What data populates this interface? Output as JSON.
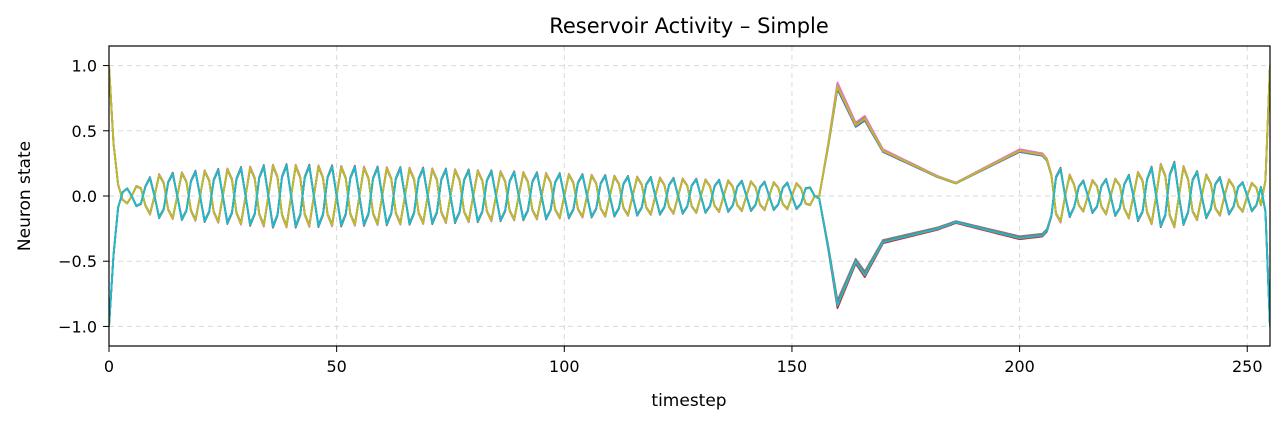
{
  "chart_data": {
    "type": "line",
    "title": "Reservoir Activity – Simple",
    "xlabel": "timestep",
    "ylabel": "Neuron state",
    "xlim": [
      0,
      255
    ],
    "ylim": [
      -1.15,
      1.15
    ],
    "xticks": [
      0,
      50,
      100,
      150,
      200,
      250
    ],
    "yticks": [
      1.0,
      0.5,
      0.0,
      -0.5,
      -1.0
    ],
    "xtick_labels": [
      "0",
      "50",
      "100",
      "150",
      "200",
      "250"
    ],
    "ytick_labels": [
      "1.0",
      "0.5",
      "0.0",
      "−0.5",
      "−1.0"
    ],
    "grid": true,
    "legend": "none",
    "colors": [
      "#1f77b4",
      "#ff7f0e",
      "#2ca02c",
      "#d62728",
      "#9467bd",
      "#8c564b",
      "#e377c2",
      "#7f7f7f",
      "#bcbd22",
      "#17becf"
    ],
    "key_points": {
      "t": [
        0,
        1,
        2,
        3,
        6,
        10,
        37,
        70,
        153,
        156,
        158,
        160,
        164,
        166,
        170,
        176,
        182,
        186,
        200,
        205,
        213,
        222,
        233,
        240,
        250,
        254,
        255
      ],
      "upper_envelope": [
        1.0,
        0.4,
        0.15,
        0.05,
        0.08,
        0.17,
        0.25,
        0.22,
        0.1,
        0.0,
        0.4,
        0.85,
        0.55,
        0.6,
        0.35,
        0.25,
        0.15,
        0.1,
        0.35,
        0.32,
        0.12,
        0.14,
        0.28,
        0.18,
        0.1,
        0.12,
        1.0
      ],
      "lower_envelope": [
        -1.0,
        -0.45,
        -0.15,
        -0.05,
        -0.08,
        -0.17,
        -0.25,
        -0.22,
        -0.1,
        -0.02,
        -0.4,
        -0.83,
        -0.5,
        -0.6,
        -0.35,
        -0.3,
        -0.25,
        -0.2,
        -0.32,
        -0.3,
        -0.12,
        -0.16,
        -0.26,
        -0.18,
        -0.12,
        -0.12,
        -1.0
      ]
    }
  }
}
